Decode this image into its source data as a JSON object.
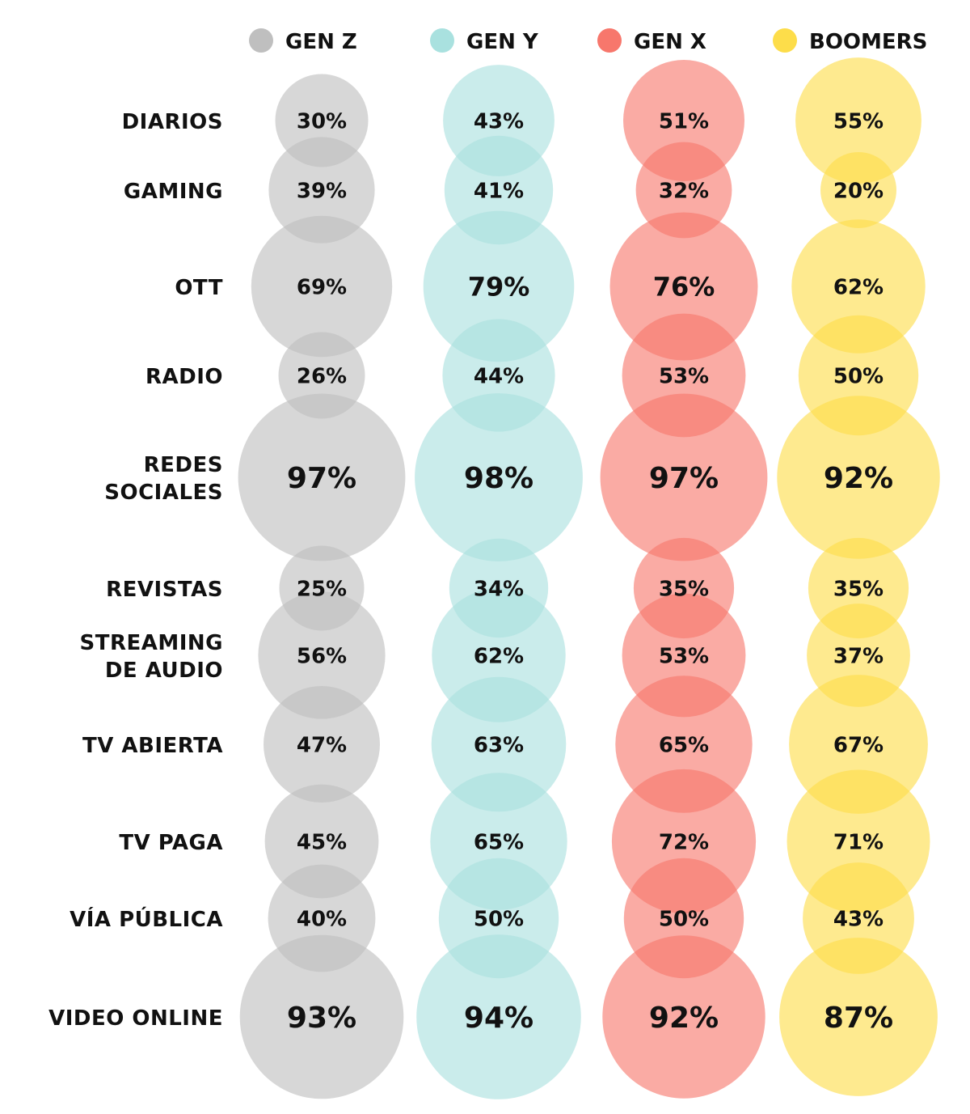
{
  "chart_data": {
    "type": "bubble",
    "legend_position": "top",
    "series": [
      {
        "name": "GEN Z",
        "color": "#bfbfbf",
        "values": [
          30,
          39,
          69,
          26,
          97,
          25,
          56,
          47,
          45,
          40,
          93
        ]
      },
      {
        "name": "GEN Y",
        "color": "#a9e1df",
        "values": [
          43,
          41,
          79,
          44,
          98,
          34,
          62,
          63,
          65,
          50,
          94
        ]
      },
      {
        "name": "GEN X",
        "color": "#f7776c",
        "values": [
          51,
          32,
          76,
          53,
          97,
          35,
          53,
          65,
          72,
          50,
          92
        ]
      },
      {
        "name": "BOOMERS",
        "color": "#fddd4a",
        "values": [
          55,
          20,
          62,
          50,
          92,
          35,
          37,
          67,
          71,
          43,
          87
        ]
      }
    ],
    "categories": [
      [
        "DIARIOS"
      ],
      [
        "GAMING"
      ],
      [
        "OTT"
      ],
      [
        "RADIO"
      ],
      [
        "REDES",
        "SOCIALES"
      ],
      [
        "REVISTAS"
      ],
      [
        "STREAMING",
        "DE AUDIO"
      ],
      [
        "TV ABIERTA"
      ],
      [
        "TV PAGA"
      ],
      [
        "VÍA PÚBLICA"
      ],
      [
        "VIDEO ONLINE"
      ]
    ],
    "value_suffix": "%"
  }
}
